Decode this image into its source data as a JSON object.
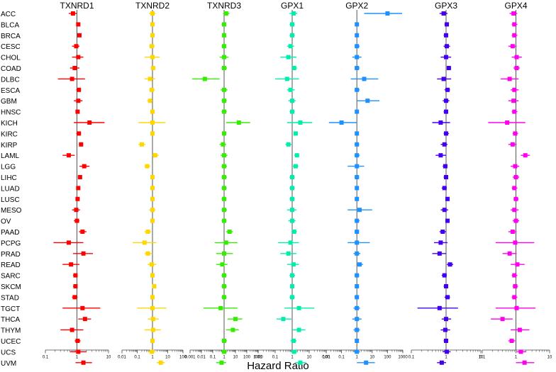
{
  "chart_data": {
    "type": "forest",
    "xlabel": "Hazard Ratio",
    "scale": "log",
    "categories": [
      "ACC",
      "BLCA",
      "BRCA",
      "CESC",
      "CHOL",
      "COAD",
      "DLBC",
      "ESCA",
      "GBM",
      "HNSC",
      "KICH",
      "KIRC",
      "KIRP",
      "LAML",
      "LGG",
      "LIHC",
      "LUAD",
      "LUSC",
      "MESO",
      "OV",
      "PAAD",
      "PCPG",
      "PRAD",
      "READ",
      "SARC",
      "SKCM",
      "STAD",
      "TGCT",
      "THCA",
      "THYM",
      "UCEC",
      "UCS",
      "UVM"
    ],
    "panels": [
      {
        "name": "TXNRD1",
        "color": "#ff0000",
        "xlim": [
          0.1,
          10
        ],
        "ticks": [
          0.1,
          1,
          10
        ],
        "tick_labels": [
          "0.1",
          "1",
          "10"
        ],
        "hr": [
          0.75,
          1.1,
          1.2,
          0.95,
          1.1,
          0.85,
          0.7,
          1.15,
          1.1,
          1.05,
          2.5,
          1.15,
          1.35,
          0.55,
          1.7,
          1.25,
          1.1,
          1.05,
          0.95,
          1.0,
          1.5,
          0.55,
          1.6,
          0.65,
          0.9,
          0.9,
          0.85,
          1.5,
          1.8,
          0.7,
          1.05,
          1.1,
          1.6
        ],
        "lo": [
          0.55,
          1.0,
          1.05,
          0.7,
          0.7,
          0.6,
          0.25,
          0.95,
          0.8,
          0.95,
          0.8,
          0.95,
          1.15,
          0.35,
          1.2,
          1.1,
          0.95,
          0.9,
          0.7,
          0.8,
          1.15,
          0.18,
          0.75,
          0.35,
          0.75,
          0.75,
          0.7,
          0.35,
          1.1,
          0.3,
          0.85,
          0.6,
          0.9
        ],
        "hi": [
          1.0,
          1.25,
          1.35,
          1.2,
          1.6,
          1.2,
          1.8,
          1.35,
          1.5,
          1.2,
          7.5,
          1.35,
          1.55,
          0.85,
          2.5,
          1.45,
          1.25,
          1.2,
          1.25,
          1.2,
          2.0,
          1.6,
          3.2,
          1.2,
          1.05,
          1.05,
          1.05,
          5.5,
          2.8,
          1.6,
          1.3,
          2.0,
          3.0
        ]
      },
      {
        "name": "TXNRD2",
        "color": "#ffd700",
        "xlim": [
          0.01,
          100
        ],
        "ticks": [
          0.01,
          0.1,
          1,
          10,
          100
        ],
        "tick_labels": [
          "0.01",
          "0.1",
          "1",
          "10",
          "100"
        ],
        "hr": [
          1.0,
          1.0,
          1.0,
          0.9,
          1.0,
          1.1,
          0.7,
          0.9,
          0.7,
          1.0,
          1.0,
          1.0,
          0.2,
          1.5,
          0.45,
          1.0,
          1.0,
          1.0,
          1.0,
          1.0,
          0.5,
          0.3,
          0.5,
          0.9,
          1.0,
          1.3,
          1.0,
          1.0,
          1.1,
          1.1,
          1.0,
          0.9,
          3.5
        ],
        "lo": [
          0.6,
          0.8,
          0.8,
          0.6,
          0.3,
          0.8,
          0.3,
          0.6,
          0.45,
          0.8,
          0.12,
          0.8,
          0.12,
          0.9,
          0.3,
          0.8,
          0.8,
          0.8,
          0.6,
          0.7,
          0.3,
          0.05,
          0.3,
          0.5,
          0.75,
          1.05,
          0.8,
          0.1,
          0.5,
          0.3,
          0.8,
          0.5,
          1.9
        ],
        "hi": [
          1.6,
          1.2,
          1.2,
          1.4,
          3.0,
          1.4,
          1.5,
          1.4,
          1.0,
          1.2,
          7.0,
          1.2,
          0.35,
          2.5,
          0.7,
          1.2,
          1.2,
          1.2,
          1.6,
          1.4,
          0.8,
          1.8,
          1.0,
          1.8,
          1.3,
          1.6,
          1.2,
          8.0,
          2.6,
          3.5,
          1.3,
          1.6,
          6.5
        ]
      },
      {
        "name": "TXNRD3",
        "color": "#33ee00",
        "xlim": [
          0.001,
          1000
        ],
        "ticks": [
          0.001,
          0.01,
          0.1,
          1,
          10,
          100,
          1000
        ],
        "tick_labels": [
          "0.001",
          "0.01",
          "0.1",
          "1",
          "10",
          "100",
          "1000"
        ],
        "hr": [
          1.5,
          1.0,
          1.0,
          1.0,
          1.0,
          1.0,
          0.02,
          1.0,
          1.0,
          1.0,
          20.0,
          1.0,
          0.8,
          1.0,
          1.0,
          1.0,
          1.0,
          1.0,
          1.0,
          1.0,
          3.0,
          1.5,
          1.0,
          0.7,
          1.0,
          1.0,
          1.0,
          0.5,
          10.0,
          6.0,
          1.0,
          1.0,
          0.6
        ],
        "lo": [
          0.8,
          0.6,
          0.7,
          0.6,
          0.4,
          0.6,
          0.0015,
          0.5,
          0.6,
          0.6,
          1.5,
          0.7,
          0.4,
          0.5,
          0.6,
          0.6,
          0.6,
          0.6,
          0.6,
          0.6,
          1.5,
          0.15,
          0.2,
          0.2,
          0.6,
          0.6,
          0.6,
          0.015,
          2.0,
          1.5,
          0.6,
          0.6,
          0.2
        ],
        "hi": [
          3.0,
          1.5,
          1.5,
          1.5,
          2.5,
          1.8,
          0.4,
          2.0,
          1.7,
          1.7,
          200.0,
          1.5,
          1.5,
          2.0,
          1.8,
          1.8,
          1.7,
          1.6,
          1.8,
          1.6,
          6.0,
          15.0,
          6.0,
          2.0,
          1.6,
          1.7,
          1.6,
          15.0,
          40.0,
          20.0,
          1.8,
          1.8,
          1.5
        ]
      },
      {
        "name": "GPX1",
        "color": "#00eeaa",
        "xlim": [
          0.01,
          100
        ],
        "ticks": [
          0.01,
          0.1,
          1,
          10,
          100
        ],
        "tick_labels": [
          "0.01",
          "0.1",
          "1",
          "10",
          "100"
        ],
        "hr": [
          1.2,
          1.0,
          1.0,
          0.8,
          0.6,
          1.3,
          0.5,
          0.8,
          1.0,
          1.0,
          3.0,
          1.6,
          0.6,
          1.9,
          1.6,
          1.0,
          1.0,
          1.0,
          1.0,
          1.0,
          1.3,
          0.8,
          0.6,
          1.2,
          1.0,
          1.0,
          1.0,
          2.5,
          0.3,
          2.5,
          1.2,
          1.3,
          3.0
        ],
        "lo": [
          0.7,
          0.7,
          0.7,
          0.5,
          0.2,
          0.9,
          0.1,
          0.5,
          0.6,
          0.7,
          0.5,
          1.2,
          0.4,
          1.3,
          1.1,
          0.7,
          0.7,
          0.7,
          0.5,
          0.6,
          0.9,
          0.15,
          0.2,
          0.5,
          0.7,
          0.8,
          0.7,
          0.35,
          0.12,
          1.0,
          0.8,
          0.8,
          1.4
        ],
        "hi": [
          2.0,
          1.4,
          1.4,
          1.3,
          1.8,
          1.9,
          2.5,
          1.4,
          1.6,
          1.4,
          15.0,
          2.2,
          0.9,
          2.6,
          2.3,
          1.4,
          1.4,
          1.4,
          1.8,
          1.6,
          1.9,
          2.5,
          1.8,
          2.5,
          1.5,
          1.3,
          1.4,
          20.0,
          0.9,
          6.0,
          1.8,
          2.2,
          7.0
        ]
      },
      {
        "name": "GPX2",
        "color": "#1e90ff",
        "xlim": [
          0.01,
          1000
        ],
        "ticks": [
          0.01,
          0.1,
          1,
          10,
          100,
          1000
        ],
        "tick_labels": [
          "0.01",
          "0.1",
          "1",
          "10",
          "100",
          "1000"
        ],
        "hr": [
          100.0,
          1.0,
          1.0,
          1.0,
          1.0,
          1.0,
          3.0,
          1.0,
          5.0,
          1.0,
          0.1,
          1.0,
          1.0,
          1.0,
          1.0,
          1.0,
          1.0,
          1.0,
          1.5,
          1.0,
          1.0,
          1.0,
          1.0,
          1.5,
          1.0,
          1.0,
          1.0,
          1.0,
          1.0,
          1.0,
          1.0,
          1.0,
          4.0
        ],
        "lo": [
          3.0,
          0.8,
          0.8,
          0.7,
          0.5,
          0.7,
          0.4,
          0.7,
          1.0,
          0.8,
          0.015,
          0.8,
          0.7,
          0.7,
          0.25,
          0.7,
          0.8,
          0.8,
          0.25,
          0.7,
          0.7,
          0.25,
          0.6,
          1.0,
          0.7,
          0.8,
          0.7,
          0.6,
          0.5,
          0.6,
          0.8,
          0.6,
          1.0
        ],
        "hi": [
          900.0,
          1.2,
          1.2,
          1.5,
          2.0,
          1.5,
          25.0,
          1.5,
          30.0,
          1.3,
          1.0,
          1.2,
          1.4,
          1.5,
          3.0,
          1.4,
          1.2,
          1.3,
          10.0,
          1.5,
          1.4,
          7.0,
          1.7,
          2.5,
          1.4,
          1.3,
          1.3,
          1.6,
          2.0,
          1.6,
          1.3,
          1.6,
          15.0
        ]
      },
      {
        "name": "GPX3",
        "color": "#4400ee",
        "xlim": [
          0.1,
          10
        ],
        "ticks": [
          0.1,
          1,
          10
        ],
        "tick_labels": [
          "0.1",
          "1",
          "10"
        ],
        "hr": [
          0.85,
          1.05,
          1.0,
          1.05,
          1.0,
          1.2,
          0.85,
          1.1,
          1.0,
          1.0,
          0.7,
          1.0,
          0.9,
          0.7,
          0.95,
          1.0,
          0.9,
          1.1,
          0.9,
          1.1,
          0.8,
          0.7,
          0.65,
          1.3,
          0.9,
          1.0,
          1.1,
          0.65,
          1.0,
          0.95,
          1.0,
          1.05,
          0.75
        ],
        "lo": [
          0.65,
          0.9,
          0.85,
          0.85,
          0.7,
          1.05,
          0.55,
          0.9,
          0.8,
          0.85,
          0.4,
          0.85,
          0.7,
          0.5,
          0.8,
          0.85,
          0.75,
          0.95,
          0.7,
          0.95,
          0.65,
          0.45,
          0.4,
          1.05,
          0.75,
          0.85,
          0.9,
          0.15,
          0.75,
          0.7,
          0.85,
          0.8,
          0.55
        ],
        "hi": [
          1.1,
          1.2,
          1.15,
          1.3,
          1.4,
          1.4,
          1.4,
          1.3,
          1.25,
          1.15,
          1.3,
          1.2,
          1.1,
          1.0,
          1.1,
          1.15,
          1.05,
          1.25,
          1.15,
          1.25,
          1.0,
          1.1,
          1.0,
          1.6,
          1.05,
          1.15,
          1.3,
          2.2,
          1.4,
          1.3,
          1.15,
          1.35,
          1.0
        ]
      },
      {
        "name": "GPX4",
        "color": "#ff00ee",
        "xlim": [
          0.1,
          10
        ],
        "ticks": [
          0.1,
          1,
          10
        ],
        "tick_labels": [
          "0.1",
          "1",
          "10"
        ],
        "hr": [
          0.85,
          0.9,
          0.9,
          0.8,
          1.05,
          1.05,
          0.65,
          0.9,
          0.85,
          0.9,
          0.55,
          0.95,
          0.8,
          1.9,
          0.95,
          1.0,
          0.9,
          1.0,
          0.9,
          1.0,
          0.8,
          0.95,
          0.65,
          1.1,
          0.9,
          0.95,
          0.9,
          1.05,
          0.4,
          1.3,
          0.75,
          1.4,
          1.8
        ],
        "lo": [
          0.65,
          0.75,
          0.75,
          0.6,
          0.75,
          0.85,
          0.35,
          0.7,
          0.6,
          0.75,
          0.15,
          0.8,
          0.6,
          1.4,
          0.7,
          0.8,
          0.75,
          0.85,
          0.7,
          0.8,
          0.6,
          0.25,
          0.4,
          0.7,
          0.75,
          0.8,
          0.75,
          0.25,
          0.18,
          0.7,
          0.6,
          1.05,
          1.0
        ],
        "hi": [
          1.1,
          1.1,
          1.1,
          1.05,
          1.5,
          1.3,
          1.2,
          1.2,
          1.2,
          1.1,
          1.9,
          1.15,
          1.05,
          2.6,
          1.25,
          1.25,
          1.1,
          1.2,
          1.2,
          1.25,
          1.05,
          3.5,
          1.05,
          1.8,
          1.1,
          1.15,
          1.1,
          3.8,
          0.8,
          2.5,
          0.95,
          2.0,
          3.5
        ]
      }
    ]
  }
}
